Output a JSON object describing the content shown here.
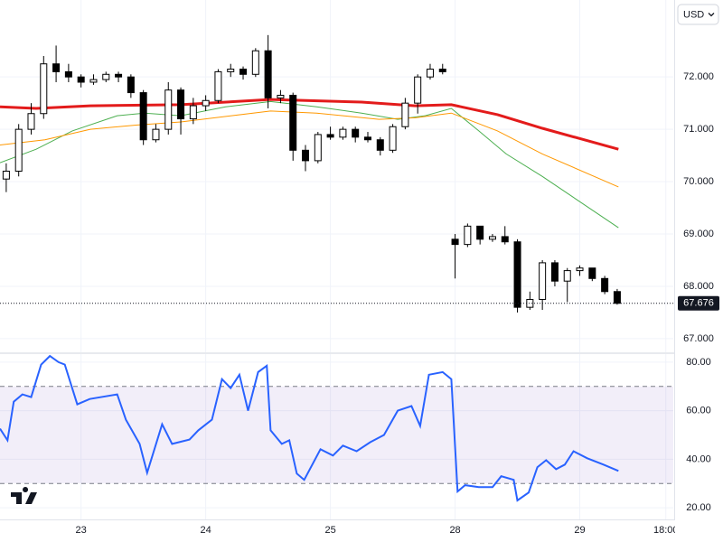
{
  "toolbar": {
    "currency": "USD"
  },
  "chart_data": [
    {
      "type": "candlestick",
      "x": [
        0.5,
        1.5,
        2.5,
        3.5,
        4.5,
        5.5,
        6.5,
        7.5,
        8.5,
        9.5,
        10.5,
        11.5,
        12.5,
        13.5,
        14.5,
        15.5,
        16.5,
        17.5,
        18.5,
        19.5,
        20.5,
        21.5,
        22.5,
        23.5,
        24.5,
        25.5,
        26.5,
        27.5,
        28.5,
        29.5,
        30.5,
        31.5,
        32.5,
        33.5,
        34.5,
        35.5,
        36.5,
        37.5,
        38.5,
        39.5,
        40.5,
        41.5,
        42.5,
        43.5,
        44.5,
        45.5,
        46.5,
        47.5,
        48.5,
        49.5
      ],
      "open": [
        70.05,
        70.2,
        71.0,
        71.3,
        72.25,
        72.1,
        72.0,
        71.9,
        71.95,
        72.05,
        72.0,
        71.7,
        70.8,
        71.0,
        71.75,
        71.2,
        71.45,
        71.55,
        72.1,
        72.15,
        72.05,
        72.5,
        71.6,
        71.65,
        70.6,
        70.4,
        70.9,
        70.85,
        71.0,
        70.85,
        70.8,
        70.6,
        71.05,
        71.5,
        72.0,
        72.15,
        68.9,
        68.8,
        69.15,
        68.9,
        68.95,
        68.85,
        67.6,
        67.75,
        68.45,
        68.1,
        68.3,
        68.35,
        68.15,
        67.9
      ],
      "high": [
        70.35,
        71.1,
        71.5,
        72.4,
        72.6,
        72.25,
        72.05,
        72.05,
        72.1,
        72.1,
        72.05,
        71.75,
        71.1,
        71.9,
        71.8,
        71.6,
        71.65,
        72.15,
        72.25,
        72.2,
        72.55,
        72.8,
        71.75,
        71.7,
        70.7,
        70.95,
        71.05,
        71.05,
        71.05,
        70.95,
        70.85,
        71.1,
        71.6,
        72.05,
        72.25,
        72.25,
        69.0,
        69.2,
        69.15,
        69.0,
        69.15,
        68.9,
        67.9,
        68.5,
        68.5,
        68.35,
        68.4,
        68.35,
        68.2,
        67.95
      ],
      "low": [
        69.8,
        70.1,
        70.9,
        71.2,
        71.9,
        71.9,
        71.8,
        71.85,
        71.9,
        71.9,
        71.6,
        70.7,
        70.75,
        70.9,
        70.9,
        71.1,
        71.35,
        71.5,
        72.0,
        71.95,
        72.0,
        71.4,
        71.5,
        70.4,
        70.2,
        70.35,
        70.8,
        70.8,
        70.75,
        70.75,
        70.5,
        70.55,
        71.0,
        71.3,
        71.95,
        72.05,
        68.15,
        68.75,
        68.8,
        68.85,
        68.8,
        67.5,
        67.55,
        67.55,
        68.0,
        67.7,
        68.2,
        68.1,
        67.85,
        67.65
      ],
      "close": [
        70.2,
        71.0,
        71.3,
        72.25,
        72.1,
        72.0,
        71.9,
        71.95,
        72.05,
        72.0,
        71.7,
        70.8,
        71.0,
        71.75,
        71.2,
        71.45,
        71.55,
        72.1,
        72.15,
        72.05,
        72.5,
        71.6,
        71.65,
        70.6,
        70.4,
        70.9,
        70.85,
        71.0,
        70.85,
        70.8,
        70.6,
        71.05,
        71.5,
        72.0,
        72.15,
        72.1,
        68.8,
        69.15,
        68.9,
        68.95,
        68.85,
        67.6,
        67.75,
        68.45,
        68.1,
        68.3,
        68.35,
        68.15,
        67.9,
        67.676
      ],
      "up_color": "#ffffff",
      "down_color": "#000000",
      "series": [
        {
          "color": "#4caf50",
          "x": [
            0,
            2.9,
            5.8,
            9.4,
            11.6,
            14.5,
            18.1,
            21.7,
            25.4,
            29,
            31.9,
            34.1,
            36.2,
            38.4,
            40.6,
            43.5,
            49.6
          ],
          "values": [
            70.36,
            70.62,
            70.97,
            71.26,
            71.31,
            71.26,
            71.43,
            71.53,
            71.43,
            71.31,
            71.19,
            71.26,
            71.4,
            70.97,
            70.53,
            70.1,
            69.12
          ]
        },
        {
          "color": "#ff9800",
          "x": [
            0,
            3.6,
            7.25,
            10.9,
            14.5,
            21.7,
            25.4,
            30.4,
            33.3,
            36.2,
            39.9,
            43.5,
            49.6
          ],
          "values": [
            70.7,
            70.8,
            71.0,
            71.08,
            71.14,
            71.35,
            71.31,
            71.19,
            71.22,
            71.31,
            70.97,
            70.53,
            69.9
          ]
        },
        {
          "color": "#e31b1b",
          "x": [
            0,
            2.9,
            7.25,
            14.5,
            21.7,
            29,
            33.3,
            36.2,
            39.9,
            43.5,
            49.6
          ],
          "values": [
            71.43,
            71.4,
            71.45,
            71.47,
            71.57,
            71.52,
            71.45,
            71.47,
            71.28,
            71.02,
            70.62
          ],
          "width": 3
        }
      ],
      "xlim": [
        0,
        54
      ],
      "ylim": [
        66.74,
        73.47
      ],
      "yticks": [
        {
          "value": 67,
          "label": "67.000"
        },
        {
          "value": 68,
          "label": "68.000"
        },
        {
          "value": 69,
          "label": "69.000"
        },
        {
          "value": 70,
          "label": "70.000"
        },
        {
          "value": 71,
          "label": "71.000"
        },
        {
          "value": 72,
          "label": "72.000"
        }
      ],
      "grid": true
    },
    {
      "type": "line",
      "x": [
        0,
        0.6,
        1.1,
        1.8,
        2.5,
        3.3,
        4,
        4.7,
        5.2,
        6.2,
        7.2,
        9.4,
        10.1,
        11.2,
        11.8,
        13,
        13.8,
        15.2,
        15.9,
        17,
        17.8,
        18.5,
        19.2,
        19.9,
        20.7,
        21.4,
        21.7,
        22.6,
        23.2,
        23.8,
        24.4,
        25.7,
        26.7,
        27.5,
        28.6,
        29.7,
        30.8,
        31.9,
        33,
        33.7,
        34.4,
        35.5,
        36.2,
        36.7,
        37.3,
        38.4,
        39.5,
        40.2,
        41.2,
        41.5,
        42.4,
        43.1,
        43.8,
        44.6,
        45.3,
        46,
        47.1,
        48.4,
        49.6
      ],
      "values": [
        52.6,
        47.8,
        63.7,
        66.7,
        65.6,
        79,
        82.5,
        80,
        79,
        62.6,
        64.8,
        66.7,
        56.3,
        46.3,
        34.4,
        54.4,
        46.3,
        48.1,
        51.9,
        56.3,
        73,
        69.3,
        74.8,
        60,
        75.9,
        78.5,
        51.9,
        46.3,
        47.8,
        34.1,
        31.5,
        44.1,
        41.5,
        45.6,
        43.3,
        47,
        50,
        60,
        61.9,
        53.7,
        74.8,
        75.9,
        73,
        26.7,
        29.3,
        28.5,
        28.5,
        33,
        31.5,
        23,
        26.3,
        36.7,
        39.6,
        35.9,
        37.8,
        43.3,
        40.4,
        37.8,
        35.2
      ],
      "color": "#2962ff",
      "band": [
        30,
        70
      ],
      "band_color": "#7e57c2",
      "xlim": [
        0,
        54
      ],
      "ylim": [
        15.2,
        83.3
      ],
      "yticks": [
        {
          "value": 20,
          "label": "20.00"
        },
        {
          "value": 40,
          "label": "40.00"
        },
        {
          "value": 60,
          "label": "60.00"
        },
        {
          "value": 80,
          "label": "80.00"
        }
      ],
      "xticks": [
        {
          "value": 6.5,
          "label": "23"
        },
        {
          "value": 16.5,
          "label": "24"
        },
        {
          "value": 26.5,
          "label": "25"
        },
        {
          "value": 36.5,
          "label": "28"
        },
        {
          "value": 46.5,
          "label": "29"
        },
        {
          "value": 53.4,
          "label": "18:00"
        }
      ],
      "grid": true
    }
  ]
}
